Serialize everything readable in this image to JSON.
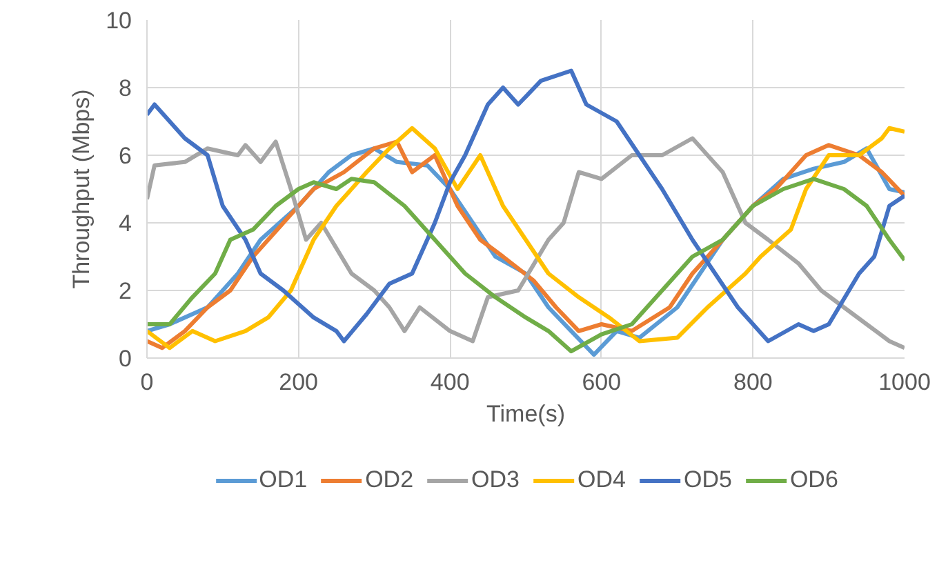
{
  "chart_data": {
    "type": "line",
    "xlabel": "Time(s)",
    "ylabel": "Throughput (Mbps)",
    "xlim": [
      0,
      1000
    ],
    "ylim": [
      0,
      10
    ],
    "xticks": [
      0,
      200,
      400,
      600,
      800,
      1000
    ],
    "yticks": [
      0,
      2,
      4,
      6,
      8,
      10
    ],
    "grid": true,
    "legend": "bottom",
    "series": [
      {
        "name": "OD1",
        "color": "#5b9bd5",
        "x": [
          0,
          30,
          80,
          120,
          150,
          200,
          240,
          270,
          300,
          330,
          370,
          400,
          430,
          460,
          500,
          530,
          560,
          590,
          620,
          650,
          700,
          730,
          760,
          800,
          840,
          880,
          920,
          950,
          980,
          1000
        ],
        "values": [
          0.8,
          1.0,
          1.5,
          2.5,
          3.5,
          4.5,
          5.5,
          6.0,
          6.2,
          5.8,
          5.7,
          5.0,
          4.0,
          3.0,
          2.5,
          1.5,
          0.8,
          0.1,
          0.8,
          0.6,
          1.5,
          2.5,
          3.5,
          4.5,
          5.3,
          5.6,
          5.8,
          6.2,
          5.0,
          4.9
        ]
      },
      {
        "name": "OD2",
        "color": "#ed7d31",
        "x": [
          0,
          20,
          50,
          80,
          110,
          140,
          180,
          220,
          260,
          300,
          330,
          350,
          380,
          410,
          440,
          470,
          510,
          540,
          570,
          600,
          640,
          690,
          720,
          760,
          800,
          830,
          870,
          900,
          940,
          970,
          1000
        ],
        "values": [
          0.5,
          0.3,
          0.8,
          1.5,
          2.0,
          3.0,
          4.0,
          5.0,
          5.5,
          6.2,
          6.4,
          5.5,
          6.0,
          4.5,
          3.5,
          3.0,
          2.3,
          1.5,
          0.8,
          1.0,
          0.8,
          1.5,
          2.5,
          3.5,
          4.5,
          5.0,
          6.0,
          6.3,
          6.0,
          5.5,
          4.8
        ]
      },
      {
        "name": "OD3",
        "color": "#a5a5a5",
        "x": [
          0,
          10,
          50,
          80,
          120,
          130,
          150,
          170,
          190,
          210,
          230,
          270,
          300,
          320,
          340,
          360,
          400,
          430,
          450,
          490,
          530,
          550,
          570,
          600,
          640,
          680,
          720,
          760,
          790,
          820,
          860,
          890,
          920,
          950,
          980,
          1000
        ],
        "values": [
          4.7,
          5.7,
          5.8,
          6.2,
          6.0,
          6.3,
          5.8,
          6.4,
          5.0,
          3.5,
          4.0,
          2.5,
          2.0,
          1.5,
          0.8,
          1.5,
          0.8,
          0.5,
          1.8,
          2.0,
          3.5,
          4.0,
          5.5,
          5.3,
          6.0,
          6.0,
          6.5,
          5.5,
          4.0,
          3.5,
          2.8,
          2.0,
          1.5,
          1.0,
          0.5,
          0.3
        ]
      },
      {
        "name": "OD4",
        "color": "#ffc000",
        "x": [
          0,
          30,
          60,
          90,
          130,
          160,
          190,
          220,
          250,
          290,
          320,
          350,
          380,
          410,
          440,
          470,
          500,
          530,
          570,
          610,
          650,
          700,
          740,
          790,
          810,
          850,
          870,
          900,
          940,
          970,
          980,
          1000
        ],
        "values": [
          0.8,
          0.3,
          0.8,
          0.5,
          0.8,
          1.2,
          2.0,
          3.5,
          4.5,
          5.5,
          6.2,
          6.8,
          6.2,
          5.0,
          6.0,
          4.5,
          3.5,
          2.5,
          1.8,
          1.2,
          0.5,
          0.6,
          1.5,
          2.5,
          3.0,
          3.8,
          5.0,
          6.0,
          6.0,
          6.5,
          6.8,
          6.7
        ]
      },
      {
        "name": "OD5",
        "color": "#4472c4",
        "x": [
          0,
          10,
          50,
          80,
          100,
          130,
          150,
          180,
          220,
          250,
          260,
          290,
          320,
          350,
          380,
          400,
          420,
          450,
          470,
          490,
          520,
          560,
          580,
          620,
          650,
          680,
          720,
          750,
          780,
          820,
          860,
          880,
          900,
          940,
          960,
          980,
          1000
        ],
        "values": [
          7.2,
          7.5,
          6.5,
          6.0,
          4.5,
          3.5,
          2.5,
          2.0,
          1.2,
          0.8,
          0.5,
          1.3,
          2.2,
          2.5,
          4.0,
          5.2,
          6.0,
          7.5,
          8.0,
          7.5,
          8.2,
          8.5,
          7.5,
          7.0,
          6.0,
          5.0,
          3.5,
          2.5,
          1.5,
          0.5,
          1.0,
          0.8,
          1.0,
          2.5,
          3.0,
          4.5,
          4.8
        ]
      },
      {
        "name": "OD6",
        "color": "#70ad47",
        "x": [
          0,
          30,
          60,
          90,
          110,
          140,
          170,
          200,
          220,
          250,
          270,
          300,
          340,
          380,
          420,
          460,
          500,
          530,
          560,
          600,
          640,
          680,
          720,
          760,
          800,
          840,
          880,
          920,
          950,
          980,
          1000
        ],
        "values": [
          1.0,
          1.0,
          1.8,
          2.5,
          3.5,
          3.8,
          4.5,
          5.0,
          5.2,
          5.0,
          5.3,
          5.2,
          4.5,
          3.5,
          2.5,
          1.8,
          1.2,
          0.8,
          0.2,
          0.7,
          1.0,
          2.0,
          3.0,
          3.5,
          4.5,
          5.0,
          5.3,
          5.0,
          4.5,
          3.5,
          2.9
        ]
      }
    ]
  }
}
